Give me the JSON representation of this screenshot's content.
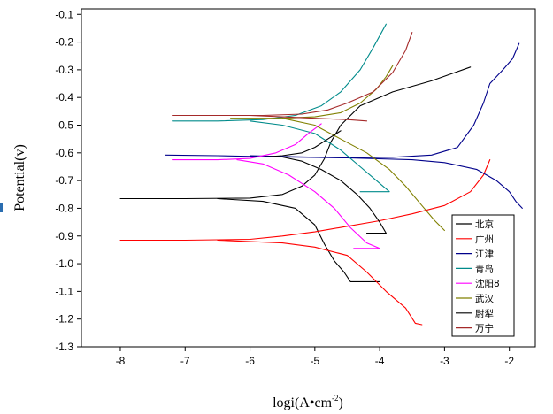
{
  "chart_data": {
    "type": "line",
    "title": "",
    "xlabel_main": "logi(A",
    "xlabel_dot": "•",
    "xlabel_unit": "cm",
    "xlabel_sup": "-2",
    "xlabel_close": ")",
    "ylabel": "Potential(v)",
    "xlim": [
      -8.6,
      -1.6
    ],
    "ylim": [
      -1.3,
      -0.08
    ],
    "xticks": [
      -8,
      -7,
      -6,
      -5,
      -4,
      -3,
      -2
    ],
    "xtick_labels": [
      "-8",
      "-7",
      "-6",
      "-5",
      "-4",
      "-3",
      "-2"
    ],
    "yticks": [
      -0.1,
      -0.2,
      -0.3,
      -0.4,
      -0.5,
      -0.6,
      -0.7,
      -0.8,
      -0.9,
      -1.0,
      -1.1,
      -1.2,
      -1.3
    ],
    "ytick_labels": [
      "-0.1",
      "-0.2",
      "-0.3",
      "-0.4",
      "-0.5",
      "-0.6",
      "-0.7",
      "-0.8",
      "-0.9",
      "-1.0",
      "-1.1",
      "-1.2",
      "-1.3"
    ],
    "legend_position": "bottom-right",
    "series": [
      {
        "name": "北京",
        "color": "#000000",
        "anodic": [
          [
            -8.0,
            -0.765
          ],
          [
            -7.0,
            -0.765
          ],
          [
            -6.0,
            -0.763
          ],
          [
            -5.5,
            -0.75
          ],
          [
            -5.2,
            -0.72
          ],
          [
            -5.0,
            -0.68
          ],
          [
            -4.85,
            -0.62
          ],
          [
            -4.75,
            -0.56
          ],
          [
            -4.6,
            -0.5
          ],
          [
            -4.3,
            -0.43
          ],
          [
            -3.8,
            -0.38
          ],
          [
            -3.2,
            -0.34
          ],
          [
            -2.6,
            -0.29
          ]
        ],
        "cathodic": [
          [
            -6.5,
            -0.765
          ],
          [
            -5.8,
            -0.775
          ],
          [
            -5.3,
            -0.8
          ],
          [
            -5.0,
            -0.86
          ],
          [
            -4.85,
            -0.93
          ],
          [
            -4.7,
            -0.99
          ],
          [
            -4.55,
            -1.03
          ],
          [
            -4.45,
            -1.065
          ],
          [
            -4.0,
            -1.065
          ]
        ]
      },
      {
        "name": "广州",
        "color": "#ff0000",
        "anodic": [
          [
            -8.0,
            -0.915
          ],
          [
            -7.0,
            -0.915
          ],
          [
            -6.0,
            -0.912
          ],
          [
            -5.5,
            -0.9
          ],
          [
            -5.0,
            -0.885
          ],
          [
            -4.5,
            -0.865
          ],
          [
            -4.0,
            -0.845
          ],
          [
            -3.5,
            -0.82
          ],
          [
            -3.0,
            -0.79
          ],
          [
            -2.6,
            -0.74
          ],
          [
            -2.4,
            -0.68
          ],
          [
            -2.3,
            -0.625
          ]
        ],
        "cathodic": [
          [
            -6.5,
            -0.915
          ],
          [
            -5.5,
            -0.925
          ],
          [
            -5.0,
            -0.94
          ],
          [
            -4.5,
            -0.97
          ],
          [
            -4.2,
            -1.03
          ],
          [
            -3.9,
            -1.1
          ],
          [
            -3.6,
            -1.16
          ],
          [
            -3.45,
            -1.215
          ],
          [
            -3.35,
            -1.22
          ]
        ]
      },
      {
        "name": "江津",
        "color": "#00008b",
        "anodic": [
          [
            -7.3,
            -0.608
          ],
          [
            -6.5,
            -0.61
          ],
          [
            -5.5,
            -0.615
          ],
          [
            -4.5,
            -0.618
          ],
          [
            -3.8,
            -0.616
          ],
          [
            -3.2,
            -0.608
          ],
          [
            -2.8,
            -0.58
          ],
          [
            -2.55,
            -0.5
          ],
          [
            -2.4,
            -0.42
          ],
          [
            -2.3,
            -0.35
          ],
          [
            -2.1,
            -0.3
          ],
          [
            -1.95,
            -0.26
          ],
          [
            -1.85,
            -0.205
          ]
        ],
        "cathodic": [
          [
            -6.0,
            -0.61
          ],
          [
            -4.5,
            -0.618
          ],
          [
            -3.5,
            -0.625
          ],
          [
            -3.0,
            -0.635
          ],
          [
            -2.5,
            -0.66
          ],
          [
            -2.2,
            -0.7
          ],
          [
            -2.0,
            -0.74
          ],
          [
            -1.9,
            -0.775
          ],
          [
            -1.8,
            -0.8
          ]
        ]
      },
      {
        "name": "青岛",
        "color": "#008b8b",
        "anodic": [
          [
            -7.2,
            -0.485
          ],
          [
            -6.5,
            -0.485
          ],
          [
            -5.8,
            -0.48
          ],
          [
            -5.3,
            -0.465
          ],
          [
            -4.9,
            -0.43
          ],
          [
            -4.6,
            -0.38
          ],
          [
            -4.3,
            -0.3
          ],
          [
            -4.1,
            -0.22
          ],
          [
            -3.9,
            -0.135
          ]
        ],
        "cathodic": [
          [
            -6.0,
            -0.485
          ],
          [
            -5.5,
            -0.5
          ],
          [
            -5.0,
            -0.53
          ],
          [
            -4.6,
            -0.59
          ],
          [
            -4.3,
            -0.65
          ],
          [
            -4.05,
            -0.7
          ],
          [
            -3.85,
            -0.74
          ],
          [
            -4.3,
            -0.74
          ]
        ]
      },
      {
        "name": "沈阳8",
        "color": "#ff00ff",
        "anodic": [
          [
            -7.2,
            -0.625
          ],
          [
            -6.5,
            -0.625
          ],
          [
            -6.0,
            -0.62
          ],
          [
            -5.6,
            -0.6
          ],
          [
            -5.3,
            -0.57
          ],
          [
            -5.1,
            -0.53
          ],
          [
            -4.9,
            -0.495
          ]
        ],
        "cathodic": [
          [
            -6.2,
            -0.625
          ],
          [
            -5.8,
            -0.64
          ],
          [
            -5.4,
            -0.68
          ],
          [
            -5.0,
            -0.74
          ],
          [
            -4.7,
            -0.8
          ],
          [
            -4.45,
            -0.87
          ],
          [
            -4.2,
            -0.925
          ],
          [
            -4.0,
            -0.945
          ],
          [
            -4.4,
            -0.945
          ]
        ]
      },
      {
        "name": "武汉",
        "color": "#808000",
        "anodic": [
          [
            -6.3,
            -0.475
          ],
          [
            -5.5,
            -0.475
          ],
          [
            -5.0,
            -0.47
          ],
          [
            -4.6,
            -0.455
          ],
          [
            -4.3,
            -0.42
          ],
          [
            -4.05,
            -0.37
          ],
          [
            -3.9,
            -0.325
          ],
          [
            -3.8,
            -0.285
          ]
        ],
        "cathodic": [
          [
            -5.5,
            -0.475
          ],
          [
            -5.0,
            -0.5
          ],
          [
            -4.6,
            -0.55
          ],
          [
            -4.2,
            -0.6
          ],
          [
            -3.85,
            -0.66
          ],
          [
            -3.6,
            -0.72
          ],
          [
            -3.35,
            -0.79
          ],
          [
            -3.15,
            -0.845
          ],
          [
            -3.0,
            -0.88
          ]
        ]
      },
      {
        "name": "尉犁",
        "color": "#000000",
        "anodic": [
          [
            -6.2,
            -0.615
          ],
          [
            -5.8,
            -0.615
          ],
          [
            -5.5,
            -0.61
          ],
          [
            -5.2,
            -0.6
          ],
          [
            -5.0,
            -0.58
          ],
          [
            -4.8,
            -0.55
          ],
          [
            -4.6,
            -0.52
          ]
        ],
        "cathodic": [
          [
            -5.5,
            -0.615
          ],
          [
            -5.2,
            -0.63
          ],
          [
            -4.9,
            -0.66
          ],
          [
            -4.6,
            -0.7
          ],
          [
            -4.35,
            -0.75
          ],
          [
            -4.15,
            -0.8
          ],
          [
            -4.0,
            -0.85
          ],
          [
            -3.9,
            -0.89
          ],
          [
            -4.2,
            -0.89
          ]
        ]
      },
      {
        "name": "万宁",
        "color": "#a52a2a",
        "anodic": [
          [
            -7.2,
            -0.465
          ],
          [
            -6.5,
            -0.465
          ],
          [
            -5.8,
            -0.465
          ],
          [
            -5.2,
            -0.46
          ],
          [
            -4.8,
            -0.445
          ],
          [
            -4.5,
            -0.42
          ],
          [
            -4.1,
            -0.38
          ],
          [
            -3.8,
            -0.31
          ],
          [
            -3.6,
            -0.23
          ],
          [
            -3.5,
            -0.165
          ]
        ],
        "cathodic": [
          [
            -6.0,
            -0.465
          ],
          [
            -5.5,
            -0.47
          ],
          [
            -5.0,
            -0.475
          ],
          [
            -4.5,
            -0.48
          ],
          [
            -4.2,
            -0.485
          ]
        ]
      }
    ]
  }
}
